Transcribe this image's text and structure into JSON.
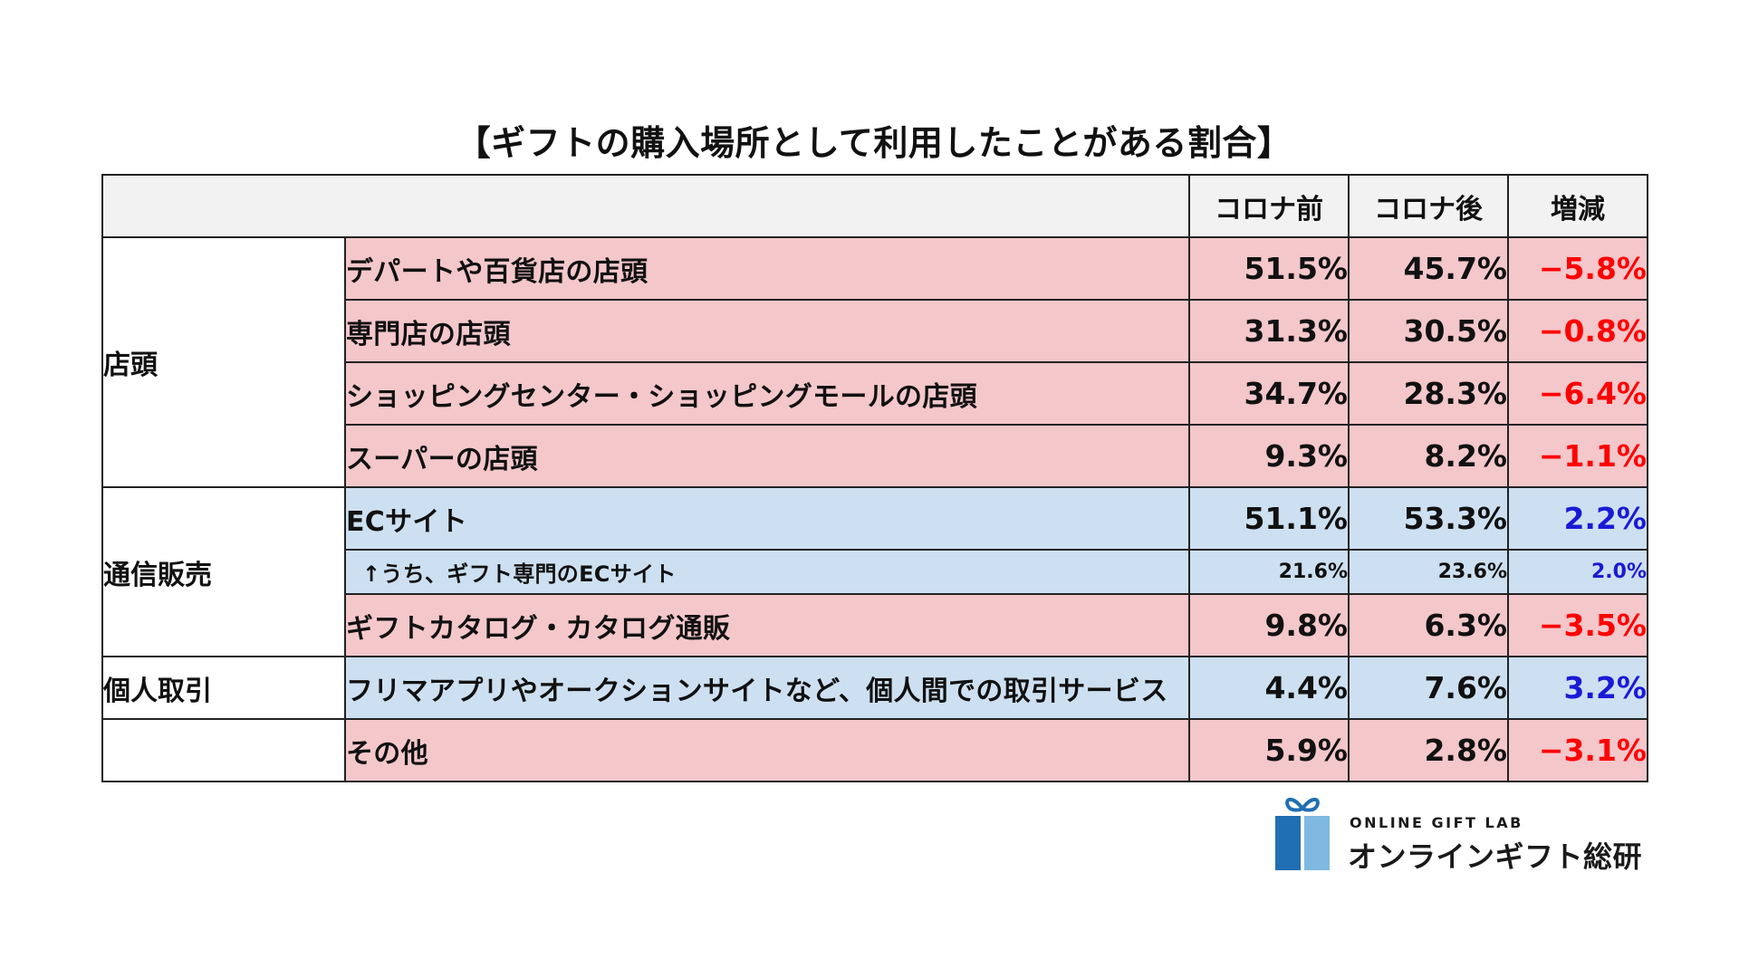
{
  "chart_data": {
    "type": "table",
    "title": "【ギフトの購入場所として利用したことがある割合】",
    "columns": [
      "コロナ前",
      "コロナ後",
      "増減"
    ],
    "rows": [
      {
        "group": "店頭",
        "label": "デパートや百貨店の店頭",
        "before": "51.5%",
        "after": "45.7%",
        "change": "−5.8%"
      },
      {
        "group": "店頭",
        "label": "専門店の店頭",
        "before": "31.3%",
        "after": "30.5%",
        "change": "−0.8%"
      },
      {
        "group": "店頭",
        "label": "ショッピングセンター・ショッピングモールの店頭",
        "before": "34.7%",
        "after": "28.3%",
        "change": "−6.4%"
      },
      {
        "group": "店頭",
        "label": "スーパーの店頭",
        "before": "9.3%",
        "after": "8.2%",
        "change": "−1.1%"
      },
      {
        "group": "通信販売",
        "label": "ECサイト",
        "before": "51.1%",
        "after": "53.3%",
        "change": "2.2%"
      },
      {
        "group": "通信販売",
        "label": "↑うち、ギフト専門のECサイト",
        "before": "21.6%",
        "after": "23.6%",
        "change": "2.0%"
      },
      {
        "group": "通信販売",
        "label": "ギフトカタログ・カタログ通販",
        "before": "9.8%",
        "after": "6.3%",
        "change": "−3.5%"
      },
      {
        "group": "個人取引",
        "label": "フリマアプリやオークションサイトなど、個人間での取引サービス",
        "before": "4.4%",
        "after": "7.6%",
        "change": "3.2%"
      },
      {
        "group": "",
        "label": "その他",
        "before": "5.9%",
        "after": "2.8%",
        "change": "−3.1%"
      }
    ],
    "colors": {
      "decrease_row": "#f4c7cb",
      "increase_row": "#cde0f1",
      "negative_text": "#ff0000",
      "positive_text": "#1a1ad6",
      "header_bg": "#f2f2f2"
    }
  },
  "logo": {
    "english": "ONLINE GIFT LAB",
    "japanese": "オンラインギフト総研",
    "icon": "gift-box-icon",
    "colors": {
      "dark": "#1f6fb2",
      "light": "#7fb8e0"
    }
  }
}
